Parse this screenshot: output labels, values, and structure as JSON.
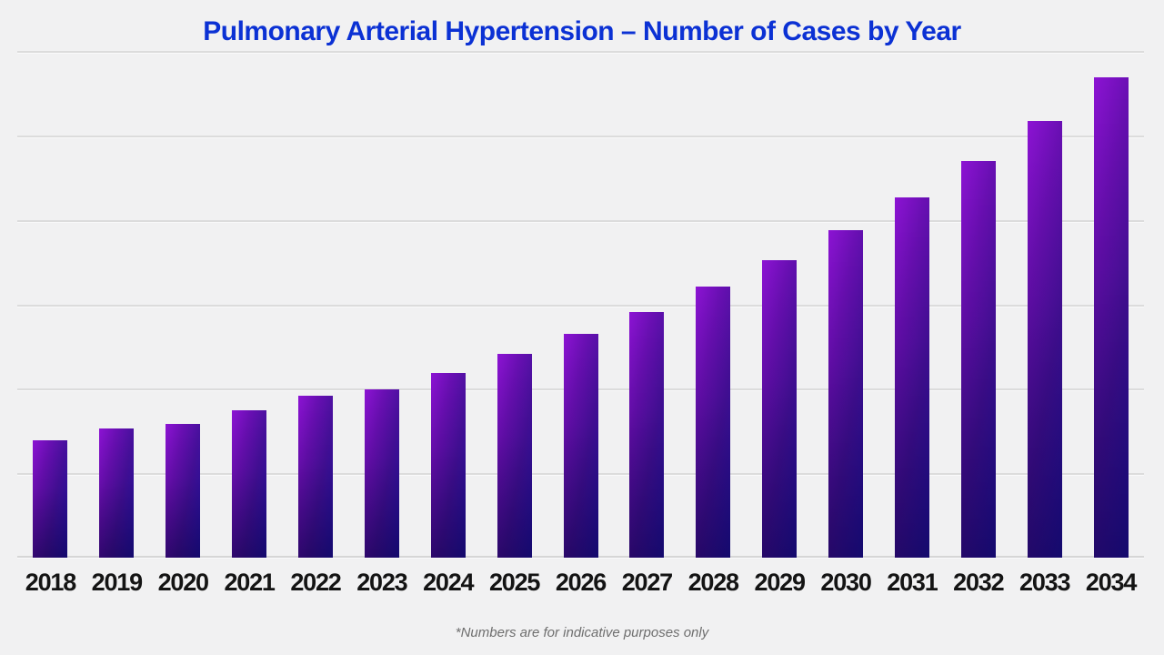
{
  "page": {
    "background_color": "#f1f1f2",
    "title_color": "#0b31d4",
    "gridline_color": "#dcdcdc",
    "bar_gradient": [
      "#8d13d4",
      "#2413ab",
      "#120a6e"
    ],
    "label_color": "#141414",
    "footnote_color": "#6e6e6e"
  },
  "header": {
    "title": "Pulmonary Arterial Hypertension – Number of Cases by Year"
  },
  "footnote": {
    "text": "*Numbers are for indicative purposes only"
  },
  "chart_data": {
    "type": "bar",
    "title": "Pulmonary Arterial Hypertension – Number of Cases by Year",
    "categories": [
      "2018",
      "2019",
      "2020",
      "2021",
      "2022",
      "2023",
      "2024",
      "2025",
      "2026",
      "2027",
      "2028",
      "2029",
      "2030",
      "2031",
      "2032",
      "2033",
      "2034"
    ],
    "values": [
      139,
      153,
      158,
      174,
      192,
      199,
      219,
      241,
      265,
      291,
      321,
      352,
      388,
      427,
      470,
      517,
      569
    ],
    "xlabel": "",
    "ylabel": "",
    "ylim": [
      0,
      600
    ],
    "gridline_interval": 100,
    "grid": "horizontal-only",
    "y_axis_labels_visible": false,
    "legend_position": "none",
    "annotation": "*Numbers are for indicative purposes only"
  }
}
